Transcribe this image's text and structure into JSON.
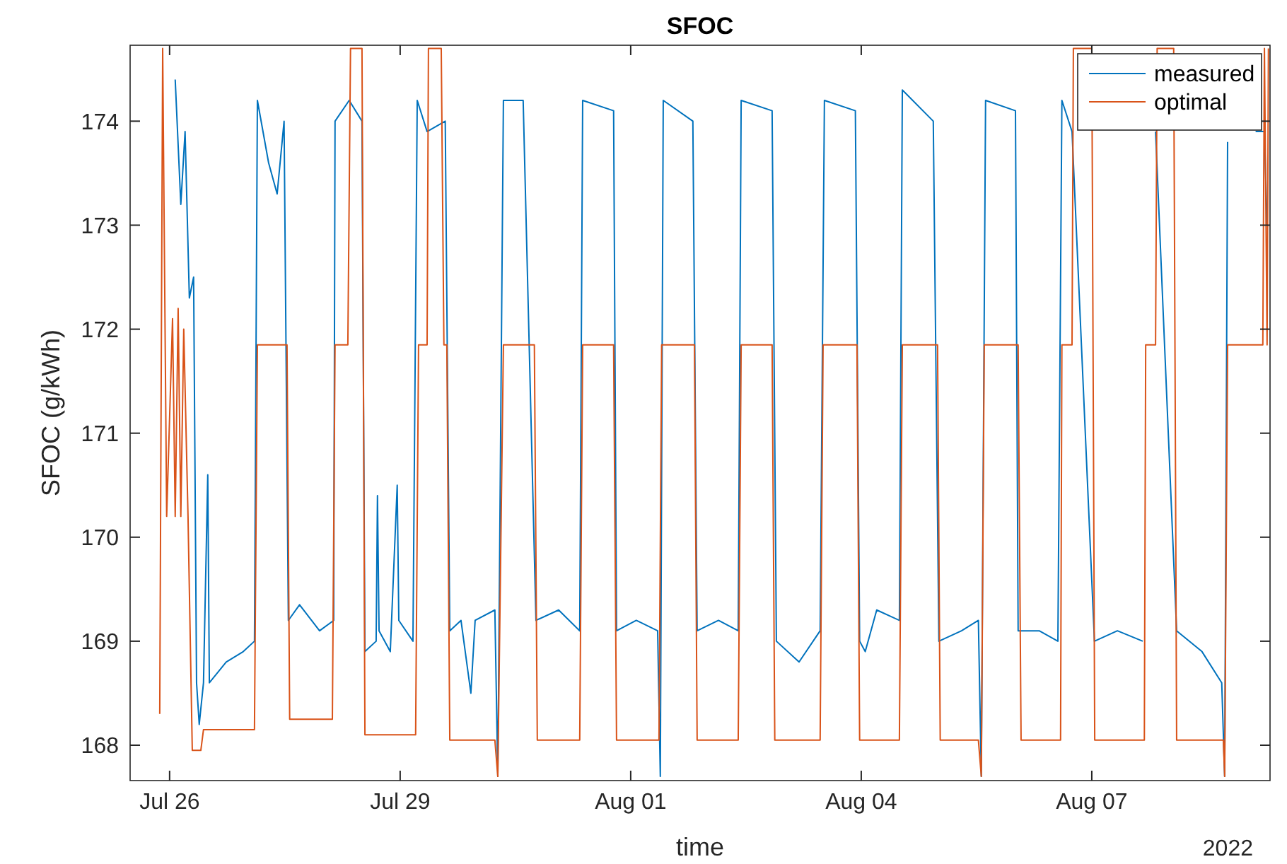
{
  "chart_data": {
    "type": "line",
    "title": "SFOC",
    "xlabel": "time",
    "ylabel": "SFOC (g/kWh)",
    "annotations": [
      "2022"
    ],
    "xlim": [
      "2022-07-25T11:40",
      "2022-08-09T07:40"
    ],
    "xticks": [
      {
        "value": "2022-07-26",
        "label": "Jul 26"
      },
      {
        "value": "2022-07-29",
        "label": "Jul 29"
      },
      {
        "value": "2022-08-01",
        "label": "Aug 01"
      },
      {
        "value": "2022-08-04",
        "label": "Aug 04"
      },
      {
        "value": "2022-08-07",
        "label": "Aug 07"
      }
    ],
    "ylim": [
      167.66,
      174.73
    ],
    "yticks": [
      168,
      169,
      170,
      171,
      172,
      173,
      174
    ],
    "grid": false,
    "legend": "top right",
    "line_style": "solid",
    "series": [
      {
        "name": "measured",
        "color": "#0072bd",
        "x": [
          "2022-07-26T01:45",
          "2022-07-26T03:30",
          "2022-07-26T04:50",
          "2022-07-26T06:10",
          "2022-07-26T07:30",
          "2022-07-26T08:25",
          "2022-07-26T09:15",
          "2022-07-26T10:35",
          "2022-07-26T11:55",
          "2022-07-26T12:25",
          "2022-07-26T17:40",
          "2022-07-26T23:00",
          "2022-07-27T02:30",
          "2022-07-27T03:25",
          "2022-07-27T06:55",
          "2022-07-27T09:35",
          "2022-07-27T11:45",
          "2022-07-27T13:05",
          "2022-07-27T16:35",
          "2022-07-27T22:50",
          "2022-07-28T03:15",
          "2022-07-28T03:40",
          "2022-07-28T08:05",
          "2022-07-28T12:05",
          "2022-07-28T13:00",
          "2022-07-28T16:30",
          "2022-07-28T16:55",
          "2022-07-28T17:25",
          "2022-07-28T20:55",
          "2022-07-28T23:05",
          "2022-07-28T23:35",
          "2022-07-29T04:00",
          "2022-07-29T05:20",
          "2022-07-29T08:25",
          "2022-07-29T14:05",
          "2022-07-29T15:30",
          "2022-07-29T19:00",
          "2022-07-29T22:05",
          "2022-07-29T23:25",
          "2022-07-30T05:35",
          "2022-07-30T06:30",
          "2022-07-30T08:15",
          "2022-07-30T14:25",
          "2022-07-30T18:25",
          "2022-07-31T01:30",
          "2022-07-31T08:05",
          "2022-07-31T09:00",
          "2022-07-31T18:40",
          "2022-07-31T19:35",
          "2022-08-01T01:45",
          "2022-08-01T08:25",
          "2022-08-01T09:15",
          "2022-08-01T10:10",
          "2022-08-01T19:25",
          "2022-08-01T20:45",
          "2022-08-02T03:25",
          "2022-08-02T09:35",
          "2022-08-02T10:30",
          "2022-08-02T20:10",
          "2022-08-02T21:30",
          "2022-08-03T04:35",
          "2022-08-03T11:10",
          "2022-08-03T12:30",
          "2022-08-03T22:10",
          "2022-08-03T23:30",
          "2022-08-04T01:15",
          "2022-08-04T04:50",
          "2022-08-04T11:55",
          "2022-08-04T12:50",
          "2022-08-04T22:30",
          "2022-08-05T00:15",
          "2022-08-05T07:20",
          "2022-08-05T12:35",
          "2022-08-05T13:30",
          "2022-08-05T14:50",
          "2022-08-06T00:10",
          "2022-08-06T01:00",
          "2022-08-06T07:35",
          "2022-08-06T13:25",
          "2022-08-06T14:40",
          "2022-08-06T17:50",
          "2022-08-07T00:50",
          "2022-08-07T08:00",
          "2022-08-07T15:55",
          "2022-08-07T17:15",
          "2022-08-07T19:55",
          "2022-08-08T02:30",
          "2022-08-08T10:25",
          "2022-08-08T16:35",
          "2022-08-08T17:30",
          "2022-08-08T18:25",
          "2022-08-08T22:50",
          "2022-08-09T03:10",
          "2022-08-09T05:55",
          "2022-08-09T06:45"
        ],
        "values": [
          174.4,
          173.2,
          173.9,
          172.3,
          172.5,
          168.6,
          168.2,
          168.6,
          170.6,
          168.6,
          168.8,
          168.9,
          169.0,
          174.2,
          173.6,
          173.3,
          174.0,
          169.2,
          169.35,
          169.1,
          169.2,
          174.0,
          174.2,
          174.0,
          168.9,
          169.0,
          170.4,
          169.1,
          168.9,
          170.5,
          169.2,
          169.0,
          174.2,
          173.9,
          174.0,
          169.1,
          169.2,
          168.5,
          169.2,
          169.3,
          167.7,
          174.2,
          174.2,
          169.2,
          169.3,
          169.1,
          174.2,
          174.1,
          169.1,
          169.2,
          169.1,
          167.7,
          174.2,
          174.0,
          169.1,
          169.2,
          169.1,
          174.2,
          174.1,
          169.0,
          168.8,
          169.1,
          174.2,
          174.1,
          169.0,
          168.9,
          169.3,
          169.2,
          174.3,
          174.0,
          169.0,
          169.1,
          169.2,
          167.7,
          174.2,
          174.1,
          169.1,
          169.1,
          169.0,
          174.2,
          173.9,
          169.0,
          169.1,
          169.0,
          null,
          173.9,
          169.1,
          168.9,
          168.6,
          167.7,
          173.8,
          null,
          173.9,
          173.9,
          173.0
        ]
      },
      {
        "name": "optimal",
        "color": "#d95319",
        "x": [
          "2022-07-25T20:55",
          "2022-07-25T21:50",
          "2022-07-25T23:05",
          "2022-07-26T00:55",
          "2022-07-26T01:45",
          "2022-07-26T02:40",
          "2022-07-26T03:30",
          "2022-07-26T04:25",
          "2022-07-26T05:45",
          "2022-07-26T07:05",
          "2022-07-26T09:45",
          "2022-07-26T10:35",
          "2022-07-27T02:30",
          "2022-07-27T03:25",
          "2022-07-27T12:40",
          "2022-07-27T13:30",
          "2022-07-28T02:50",
          "2022-07-28T03:40",
          "2022-07-28T07:40",
          "2022-07-28T08:30",
          "2022-07-28T12:05",
          "2022-07-28T13:00",
          "2022-07-29T04:50",
          "2022-07-29T05:45",
          "2022-07-29T08:25",
          "2022-07-29T08:50",
          "2022-07-29T12:50",
          "2022-07-29T13:40",
          "2022-07-29T14:35",
          "2022-07-29T15:30",
          "2022-07-30T05:35",
          "2022-07-30T06:30",
          "2022-07-30T08:15",
          "2022-07-30T17:55",
          "2022-07-30T18:50",
          "2022-07-31T08:05",
          "2022-07-31T09:00",
          "2022-07-31T18:40",
          "2022-07-31T19:35",
          "2022-08-01T08:50",
          "2022-08-01T09:40",
          "2022-08-01T19:55",
          "2022-08-01T20:45",
          "2022-08-02T09:35",
          "2022-08-02T10:30",
          "2022-08-02T20:10",
          "2022-08-02T21:00",
          "2022-08-03T11:10",
          "2022-08-03T12:05",
          "2022-08-03T22:40",
          "2022-08-03T23:30",
          "2022-08-04T11:55",
          "2022-08-04T12:50",
          "2022-08-04T23:50",
          "2022-08-05T00:40",
          "2022-08-05T12:35",
          "2022-08-05T13:30",
          "2022-08-05T14:25",
          "2022-08-06T01:00",
          "2022-08-06T01:55",
          "2022-08-06T14:15",
          "2022-08-06T14:40",
          "2022-08-06T17:50",
          "2022-08-06T18:15",
          "2022-08-07T00:00",
          "2022-08-07T00:55",
          "2022-08-07T16:25",
          "2022-08-07T16:50",
          "2022-08-07T19:55",
          "2022-08-07T20:25",
          "2022-08-08T01:35",
          "2022-08-08T02:30",
          "2022-08-08T17:05",
          "2022-08-08T17:30",
          "2022-08-08T18:25",
          "2022-08-09T03:10",
          "2022-08-09T05:25",
          "2022-08-09T05:55",
          "2022-08-09T06:45",
          "2022-08-09T07:10"
        ],
        "values": [
          168.3,
          174.7,
          170.2,
          172.1,
          170.2,
          172.2,
          170.2,
          172.0,
          170.2,
          167.95,
          167.95,
          168.15,
          168.15,
          171.85,
          171.85,
          168.25,
          168.25,
          171.85,
          171.85,
          174.7,
          174.7,
          168.1,
          168.1,
          171.85,
          171.85,
          174.7,
          174.7,
          171.85,
          171.85,
          168.05,
          168.05,
          167.7,
          171.85,
          171.85,
          168.05,
          168.05,
          171.85,
          171.85,
          168.05,
          168.05,
          171.85,
          171.85,
          168.05,
          168.05,
          171.85,
          171.85,
          168.05,
          168.05,
          171.85,
          171.85,
          168.05,
          168.05,
          171.85,
          171.85,
          168.05,
          168.05,
          167.7,
          171.85,
          171.85,
          168.05,
          168.05,
          171.85,
          171.85,
          174.7,
          174.7,
          168.05,
          168.05,
          171.85,
          171.85,
          174.7,
          174.7,
          168.05,
          168.05,
          167.7,
          171.85,
          171.85,
          171.85,
          174.7,
          171.85,
          174.7
        ]
      }
    ]
  }
}
